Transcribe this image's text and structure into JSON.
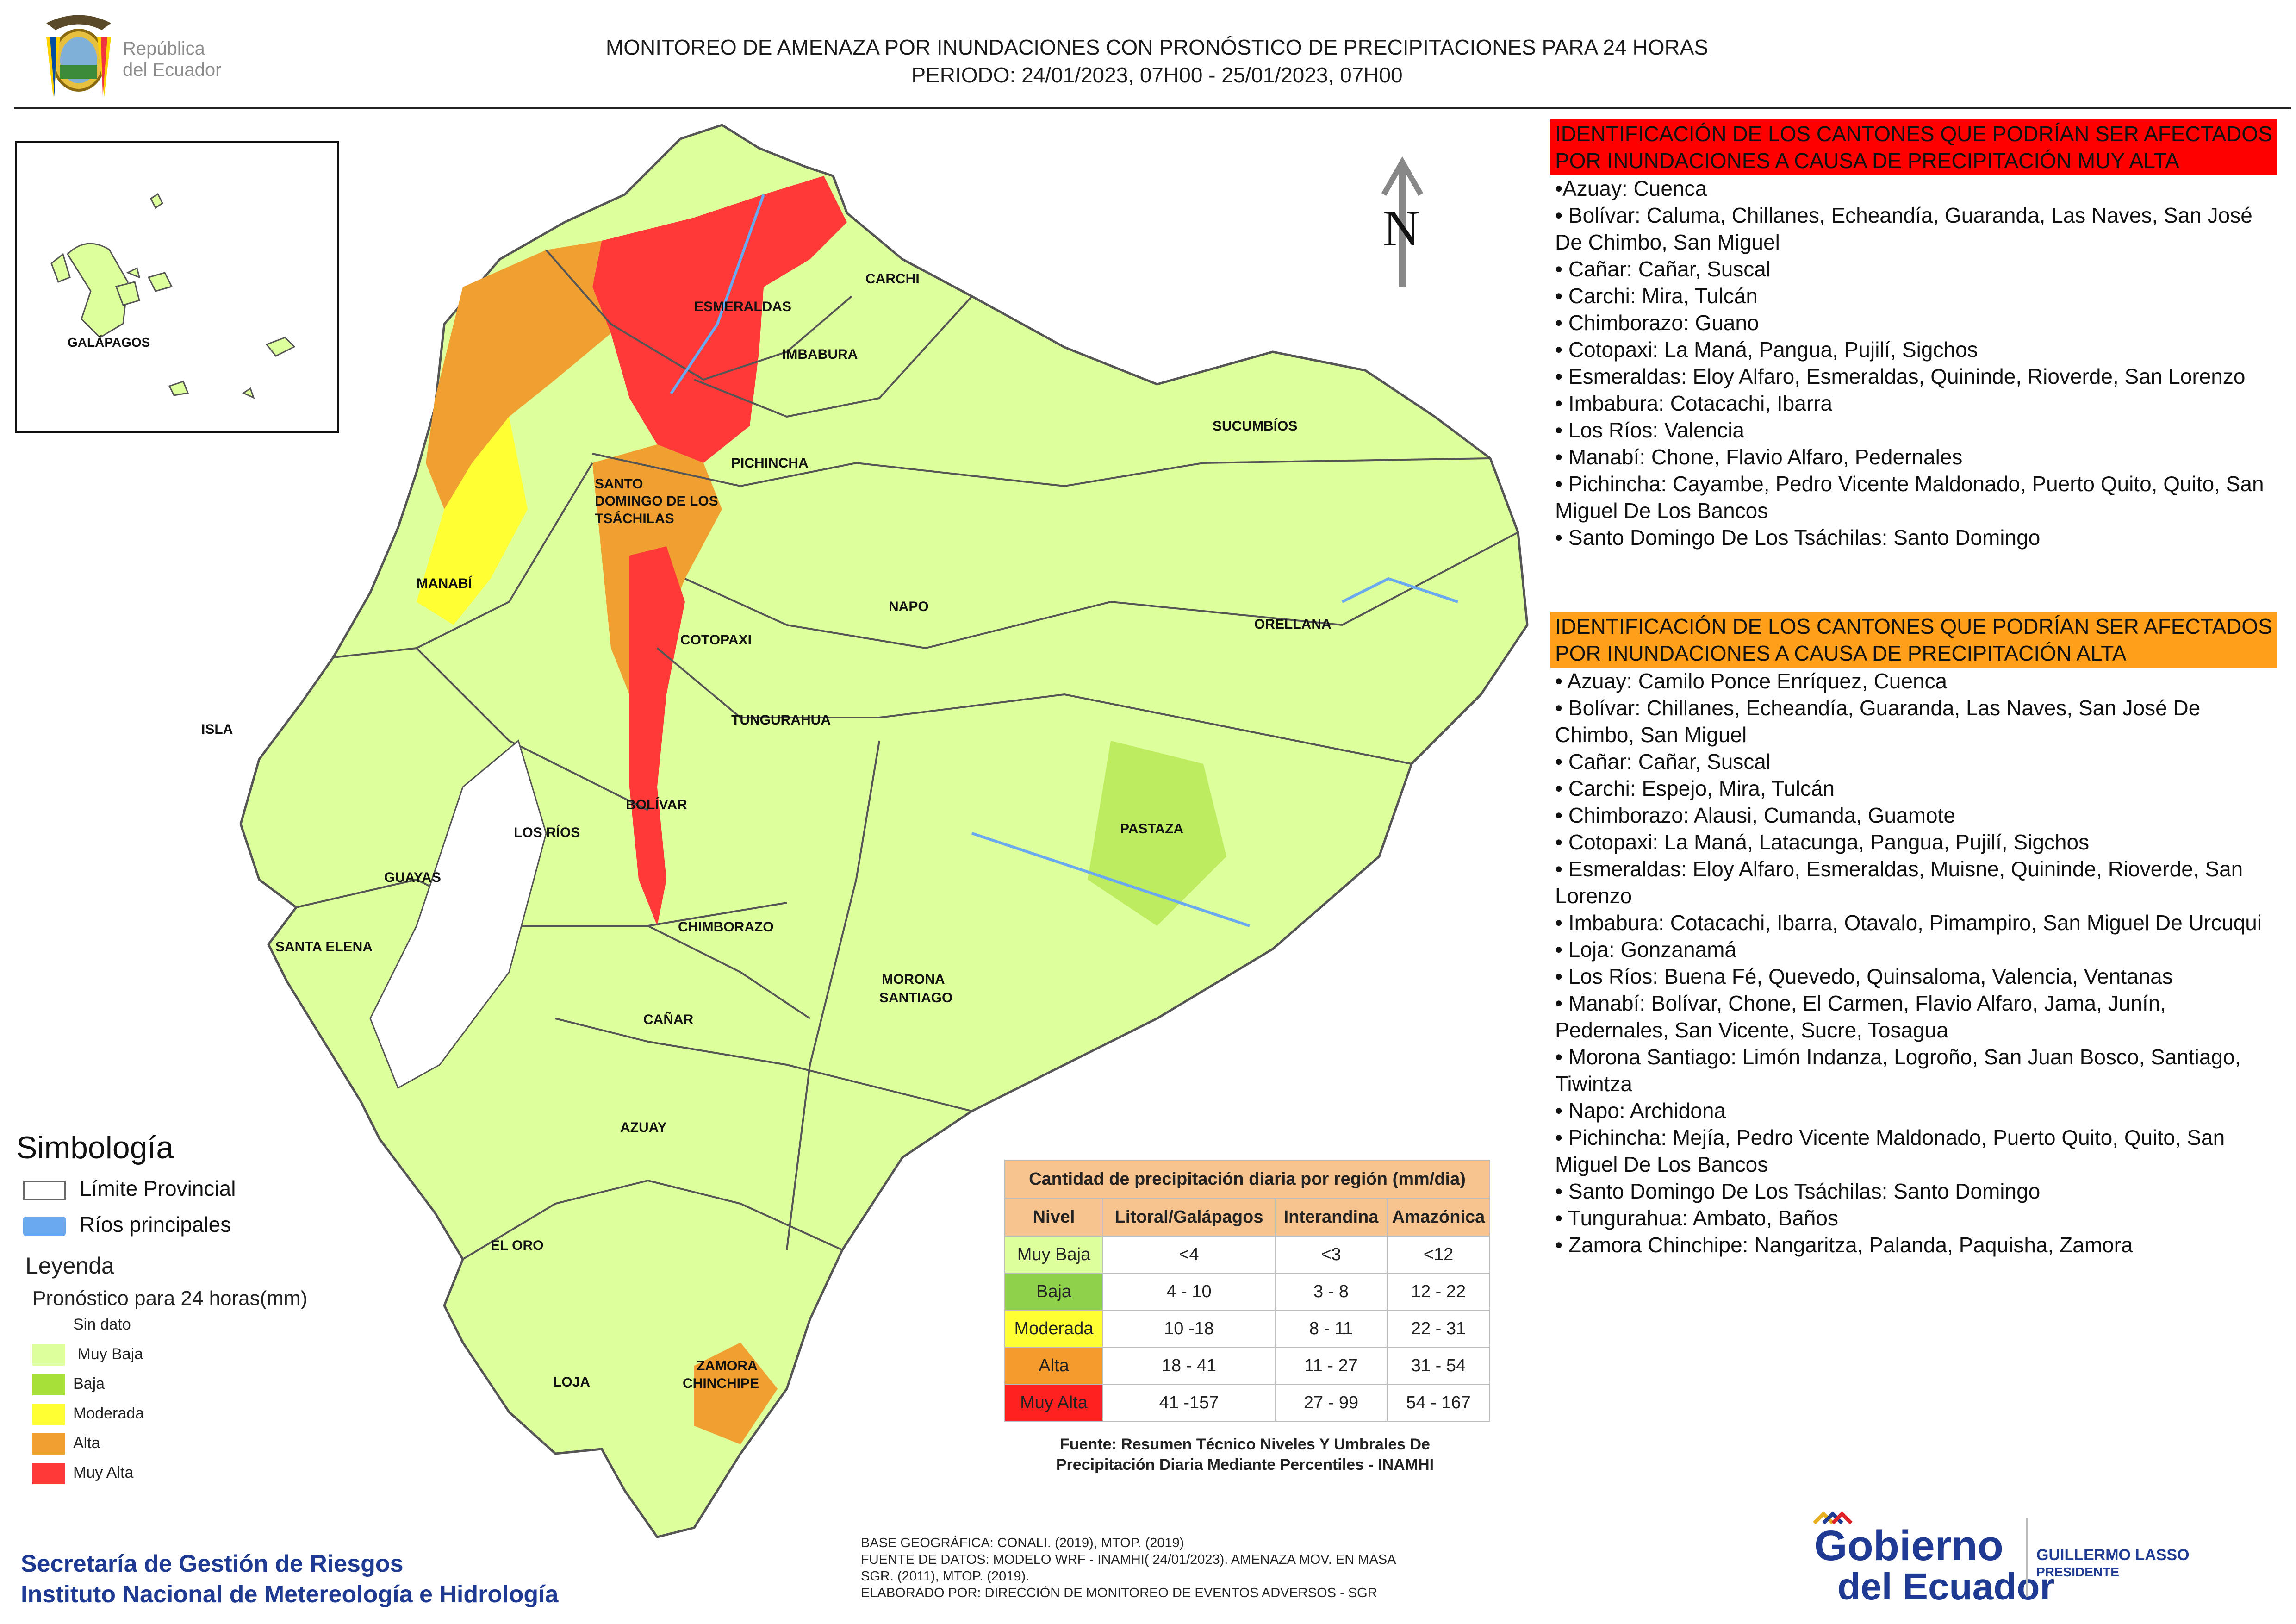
{
  "header": {
    "title_line1": "MONITOREO DE AMENAZA POR INUNDACIONES  CON PRONÓSTICO DE  PRECIPITACIONES PARA 24 HORAS",
    "title_line2": "PERIODO: 24/01/2023, 07H00 - 25/01/2023, 07H00",
    "logo_text_line1": "República",
    "logo_text_line2": "del Ecuador"
  },
  "inset": {
    "label": "GALÁPAGOS"
  },
  "north_label": "N",
  "provinces": {
    "esmeraldas": "ESMERALDAS",
    "carchi": "CARCHI",
    "imbabura": "IMBABURA",
    "sucumbios": "SUCUMBÍOS",
    "pichincha": "PICHINCHA",
    "santo_domingo_1": "SANTO",
    "santo_domingo_2": "DOMINGO DE LOS",
    "santo_domingo_3": "TSÁCHILAS",
    "manabi": "MANABÍ",
    "napo": "NAPO",
    "orellana": "ORELLANA",
    "cotopaxi": "COTOPAXI",
    "isla": "ISLA",
    "tungurahua": "TUNGURAHUA",
    "bolivar": "BOLÍVAR",
    "los_rios": "LOS RÍOS",
    "pastaza": "PASTAZA",
    "guayas": "GUAYAS",
    "chimborazo": "CHIMBORAZO",
    "santa_elena": "SANTA ELENA",
    "morona_1": "MORONA",
    "morona_2": "SANTIAGO",
    "canar": "CAÑAR",
    "azuay": "AZUAY",
    "el_oro": "EL ORO",
    "loja": "LOJA",
    "zamora_1": "ZAMORA",
    "zamora_2": "CHINCHIPE"
  },
  "muy_alta": {
    "heading": "IDENTIFICACIÓN DE LOS CANTONES QUE PODRÍAN SER AFECTADOS POR INUNDACIONES  A CAUSA DE PRECIPITACIÓN MUY ALTA",
    "items": [
      "•Azuay: Cuenca",
      "• Bolívar: Caluma, Chillanes, Echeandía, Guaranda, Las Naves, San José De Chimbo, San Miguel",
      "• Cañar: Cañar, Suscal",
      "• Carchi: Mira, Tulcán",
      "• Chimborazo: Guano",
      "• Cotopaxi: La Maná, Pangua, Pujilí, Sigchos",
      "• Esmeraldas: Eloy Alfaro, Esmeraldas, Quininde, Rioverde, San Lorenzo",
      "• Imbabura: Cotacachi, Ibarra",
      "• Los Ríos: Valencia",
      "• Manabí: Chone, Flavio Alfaro, Pedernales",
      "• Pichincha: Cayambe, Pedro Vicente Maldonado, Puerto Quito, Quito, San Miguel De Los Bancos",
      "• Santo Domingo De Los Tsáchilas: Santo Domingo"
    ]
  },
  "alta": {
    "heading": "IDENTIFICACIÓN DE LOS CANTONES QUE  PODRÍAN SER AFECTADOS POR INUNDACIONES  A CAUSA DE PRECIPITACIÓN ALTA",
    "items": [
      "• Azuay: Camilo Ponce Enríquez, Cuenca",
      "• Bolívar: Chillanes, Echeandía, Guaranda, Las Naves, San José De Chimbo, San Miguel",
      "• Cañar: Cañar, Suscal",
      "• Carchi: Espejo, Mira, Tulcán",
      "• Chimborazo: Alausi, Cumanda, Guamote",
      "• Cotopaxi: La Maná, Latacunga, Pangua, Pujilí, Sigchos",
      "• Esmeraldas: Eloy Alfaro, Esmeraldas, Muisne, Quininde, Rioverde, San Lorenzo",
      "• Imbabura: Cotacachi, Ibarra, Otavalo, Pimampiro, San Miguel De Urcuqui",
      "• Loja: Gonzanamá",
      "• Los Ríos: Buena Fé, Quevedo, Quinsaloma, Valencia, Ventanas",
      "• Manabí: Bolívar, Chone, El Carmen, Flavio Alfaro, Jama, Junín, Pedernales, San Vicente, Sucre, Tosagua",
      "• Morona Santiago: Limón Indanza, Logroño, San Juan Bosco, Santiago, Tiwintza",
      "• Napo: Archidona",
      "• Pichincha: Mejía, Pedro Vicente Maldonado, Puerto Quito, Quito, San Miguel De Los Bancos",
      "• Santo Domingo De Los Tsáchilas: Santo Domingo",
      "• Tungurahua: Ambato, Baños",
      "• Zamora Chinchipe: Nangaritza, Palanda, Paquisha, Zamora"
    ]
  },
  "simbologia": {
    "title": "Simbología",
    "limite": "Límite Provincial",
    "rios": "Ríos principales",
    "leyenda": "Leyenda",
    "subtitle": "Pronóstico para 24 horas(mm)",
    "items": [
      {
        "label": "Sin dato",
        "color": "#ffffff"
      },
      {
        "label": " Muy Baja",
        "color": "#ddff9c"
      },
      {
        "label": "Baja",
        "color": "#a8e03a"
      },
      {
        "label": "Moderada",
        "color": "#ffff33"
      },
      {
        "label": "Alta",
        "color": "#f0a030"
      },
      {
        "label": "Muy Alta",
        "color": "#ff3838"
      }
    ]
  },
  "table": {
    "caption": "Cantidad de precipitación diaria por región (mm/dia)",
    "headers": [
      "Nivel",
      "Litoral/Galápagos",
      "Interandina",
      "Amazónica"
    ],
    "rows": [
      {
        "nivel": "Muy Baja",
        "color": "#ddff9c",
        "values": [
          "<4",
          "<3",
          "<12"
        ]
      },
      {
        "nivel": "Baja",
        "color": "#8dd24a",
        "values": [
          "4 - 10",
          "3 - 8",
          "12 - 22"
        ]
      },
      {
        "nivel": "Moderada",
        "color": "#ffff33",
        "values": [
          "10 -18",
          "8 - 11",
          "22 - 31"
        ]
      },
      {
        "nivel": "Alta",
        "color": "#f59a2c",
        "values": [
          "18 - 41",
          "11 - 27",
          "31 - 54"
        ]
      },
      {
        "nivel": "Muy Alta",
        "color": "#ff2020",
        "values": [
          "41 -157",
          "27 - 99",
          "54 - 167"
        ]
      }
    ],
    "fuente_1": "Fuente: Resumen Técnico Niveles Y Umbrales De",
    "fuente_2": "Precipitación Diaria Mediante Percentiles - INAMHI"
  },
  "footer": {
    "base_1": "BASE GEOGRÁFICA: CONALI. (2019), MTOP. (2019)",
    "base_2": "FUENTE DE DATOS: MODELO WRF - INAMHI( 24/01/2023).  AMENAZA MOV. EN MASA",
    "base_3": "SGR. (2011), MTOP. (2019).",
    "base_4": "ELABORADO POR: DIRECCIÓN DE MONITOREO DE EVENTOS ADVERSOS - SGR",
    "org_1": "Secretaría de Gestión de Riesgos",
    "org_2": "Instituto Nacional de Metereología e Hidrología",
    "gob_1": "Gobierno",
    "gob_2": "del Ecuador",
    "president_1": "GUILLERMO LASSO",
    "president_2": "PRESIDENTE"
  }
}
